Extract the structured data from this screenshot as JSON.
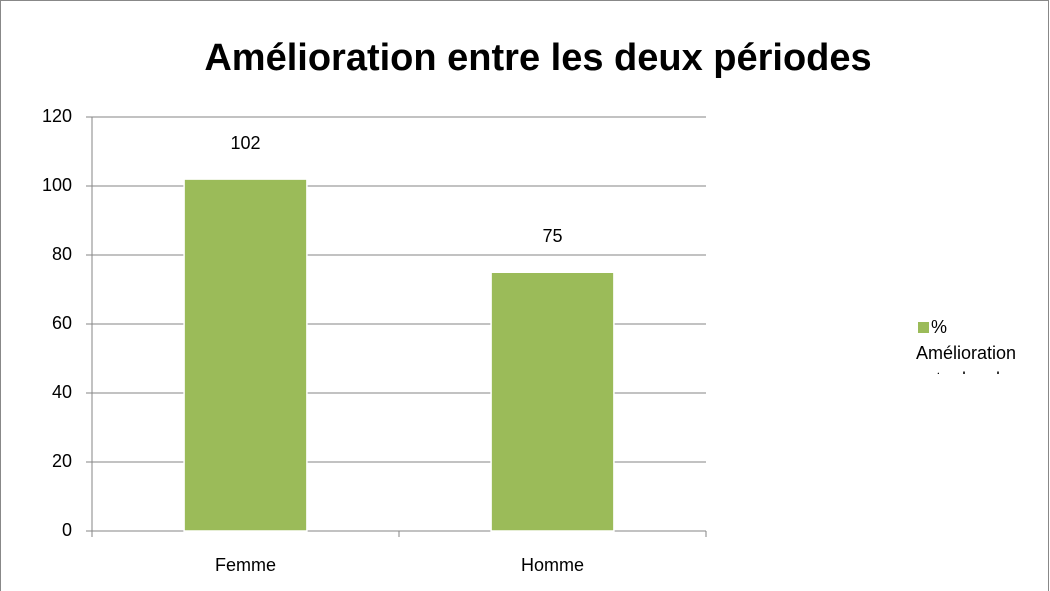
{
  "chart_data": {
    "type": "bar",
    "title": "Amélioration entre les deux périodes",
    "categories": [
      "Femme",
      "Homme"
    ],
    "series": [
      {
        "name": "% Amélioration entre les deux périodes",
        "color": "#9bbb59",
        "values": [
          102,
          75
        ]
      }
    ],
    "ylim": [
      0,
      120
    ],
    "yticks": [
      0,
      20,
      40,
      60,
      80,
      100,
      120
    ],
    "grid": true,
    "legend": "right"
  }
}
